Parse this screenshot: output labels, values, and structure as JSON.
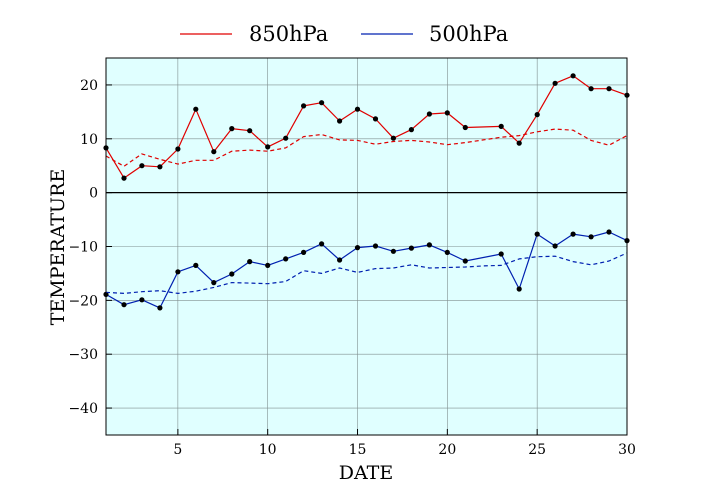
{
  "chart_data": {
    "type": "line",
    "title": "",
    "xlabel": "DATE",
    "ylabel": "TEMPERATURE",
    "xlim": [
      1,
      30
    ],
    "ylim": [
      -45,
      25
    ],
    "xticks": [
      5,
      10,
      15,
      20,
      25,
      30
    ],
    "yticks": [
      20,
      10,
      0,
      -10,
      -20,
      -30,
      -40
    ],
    "ytick_labels": [
      "20",
      "10",
      "0",
      "−10",
      "−20",
      "−30",
      "−40"
    ],
    "grid": true,
    "plot_background": "#e0ffff",
    "legend": {
      "placement": "top",
      "entries": [
        "850hPa",
        "500hPa"
      ]
    },
    "series": [
      {
        "name": "850hPa",
        "color": "#e00000",
        "style": "solid",
        "markers": true,
        "x": [
          1,
          2,
          3,
          4,
          5,
          6,
          7,
          8,
          9,
          10,
          11,
          12,
          13,
          14,
          15,
          16,
          17,
          18,
          19,
          20,
          21,
          23,
          24,
          25,
          26,
          27,
          28,
          29,
          30
        ],
        "values": [
          8.3,
          2.7,
          5.0,
          4.8,
          8.1,
          15.5,
          7.6,
          11.9,
          11.5,
          8.5,
          10.1,
          16.1,
          16.7,
          13.3,
          15.5,
          13.7,
          10.1,
          11.7,
          14.6,
          14.8,
          12.1,
          12.3,
          9.2,
          14.5,
          20.3,
          21.7,
          19.3,
          19.3,
          18.1
        ]
      },
      {
        "name": "",
        "color": "#e00000",
        "style": "dashed",
        "markers": false,
        "x": [
          1,
          2,
          3,
          4,
          5,
          6,
          7,
          8,
          9,
          10,
          11,
          12,
          13,
          14,
          15,
          16,
          17,
          18,
          19,
          20,
          21,
          22,
          23,
          24,
          25,
          26,
          27,
          28,
          29,
          30
        ],
        "values": [
          6.8,
          4.9,
          7.2,
          6.2,
          5.3,
          6.0,
          6.0,
          7.7,
          7.9,
          7.7,
          8.3,
          10.4,
          10.8,
          9.8,
          9.7,
          9.0,
          9.5,
          9.7,
          9.4,
          8.9,
          9.3,
          9.8,
          10.3,
          10.6,
          11.3,
          11.8,
          11.6,
          9.7,
          8.8,
          10.6
        ]
      },
      {
        "name": "500hPa",
        "color": "#0020b0",
        "style": "solid",
        "markers": true,
        "x": [
          1,
          2,
          3,
          4,
          5,
          6,
          7,
          8,
          9,
          10,
          11,
          12,
          13,
          14,
          15,
          16,
          17,
          18,
          19,
          20,
          21,
          23,
          24,
          25,
          26,
          27,
          28,
          29,
          30
        ],
        "values": [
          -18.9,
          -20.8,
          -19.9,
          -21.4,
          -14.7,
          -13.5,
          -16.7,
          -15.1,
          -12.8,
          -13.5,
          -12.3,
          -11.1,
          -9.5,
          -12.5,
          -10.2,
          -9.9,
          -10.9,
          -10.3,
          -9.7,
          -11.1,
          -12.7,
          -11.4,
          -17.9,
          -7.7,
          -9.9,
          -7.7,
          -8.2,
          -7.3,
          -8.9
        ]
      },
      {
        "name": "",
        "color": "#0020b0",
        "style": "dashed",
        "markers": false,
        "x": [
          1,
          2,
          3,
          4,
          5,
          6,
          7,
          8,
          9,
          10,
          11,
          12,
          13,
          14,
          15,
          16,
          17,
          18,
          19,
          20,
          21,
          22,
          23,
          24,
          25,
          26,
          27,
          28,
          29,
          30
        ],
        "values": [
          -18.5,
          -18.7,
          -18.4,
          -18.2,
          -18.7,
          -18.3,
          -17.6,
          -16.7,
          -16.8,
          -16.9,
          -16.5,
          -14.5,
          -15.0,
          -14.0,
          -14.8,
          -14.1,
          -14.0,
          -13.4,
          -14.0,
          -13.9,
          -13.8,
          -13.6,
          -13.5,
          -12.3,
          -11.9,
          -11.8,
          -12.8,
          -13.4,
          -12.7,
          -11.2
        ]
      }
    ]
  }
}
